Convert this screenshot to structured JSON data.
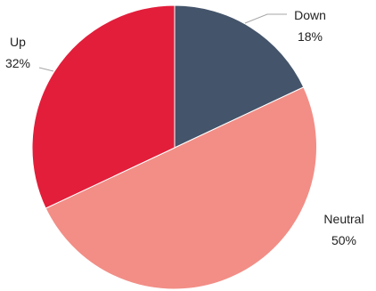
{
  "chart_data": {
    "type": "pie",
    "title": "",
    "slices": [
      {
        "name": "Down",
        "value": 18,
        "label_value": "18%",
        "color": "#44546a"
      },
      {
        "name": "Neutral",
        "value": 50,
        "label_value": "50%",
        "color": "#f28e86"
      },
      {
        "name": "Up",
        "value": 32,
        "label_value": "32%",
        "color": "#e21e3a"
      }
    ],
    "start_angle": "12 o'clock",
    "direction": "clockwise",
    "legend": "none",
    "data_labels": "category name and percentage, outside with leader lines"
  }
}
